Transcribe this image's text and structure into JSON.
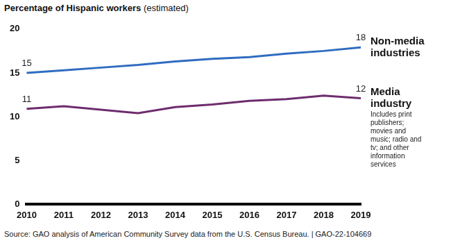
{
  "chart_data": {
    "type": "line",
    "y_label": "Percentage of Hispanic workers",
    "y_label_note": "(estimated)",
    "source": "Source: GAO analysis of American Community Survey data from the U.S. Census Bureau.  |  GAO-22-104669",
    "categories": [
      "2010",
      "2011",
      "2012",
      "2013",
      "2014",
      "2015",
      "2016",
      "2017",
      "2018",
      "2019"
    ],
    "series": [
      {
        "name": "Non-media industries",
        "color": "#2f6cc0",
        "marker": "none",
        "line_style": "solid",
        "values": [
          15.0,
          15.3,
          15.6,
          15.9,
          16.3,
          16.6,
          16.8,
          17.2,
          17.5,
          17.9
        ],
        "value_labels": [
          "15",
          null,
          null,
          null,
          null,
          null,
          null,
          null,
          null,
          "18"
        ]
      },
      {
        "name": "Media industry",
        "color": "#6e2c6e",
        "marker": "none",
        "line_style": "solid",
        "description": "Includes print publishers; movies and music; radio and tv; and other information services",
        "values": [
          10.9,
          11.2,
          10.8,
          10.4,
          11.1,
          11.4,
          11.8,
          12.0,
          12.4,
          12.1
        ],
        "value_labels": [
          "11",
          null,
          null,
          null,
          null,
          null,
          null,
          null,
          null,
          "12"
        ]
      }
    ],
    "ylim": [
      0,
      20
    ],
    "yticks": [
      0,
      5,
      10,
      15,
      20
    ],
    "grid": false,
    "data_labels": true
  }
}
